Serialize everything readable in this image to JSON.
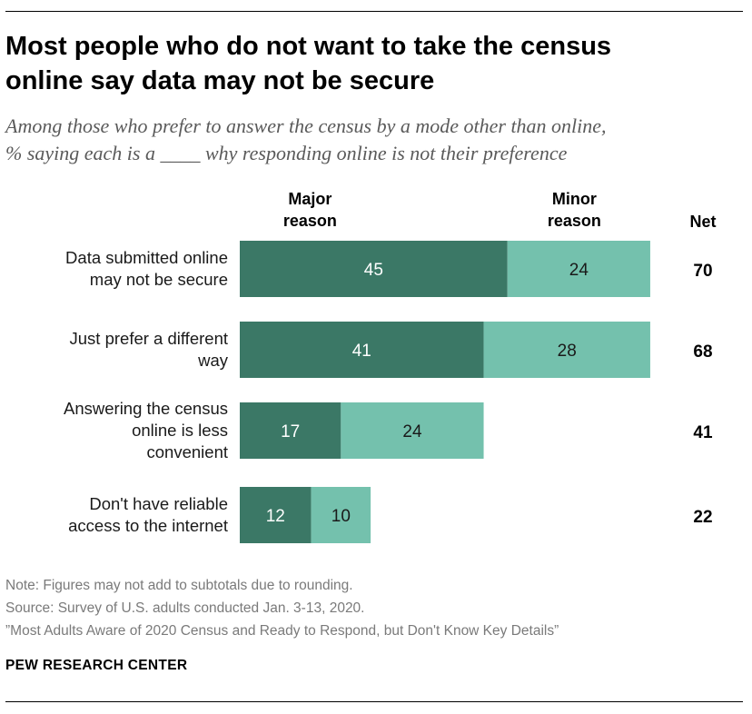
{
  "header": {
    "title_line1": "Most people who do not want to take the census",
    "title_line2": "online say data may not be secure",
    "subtitle_line1": "Among those who prefer to answer the census by a mode other than online,",
    "subtitle_line2": "% saying each is a ____ why responding online is not their preference"
  },
  "chart_data": {
    "type": "bar",
    "orientation": "horizontal",
    "stacked": true,
    "columns": {
      "major": [
        "Major",
        "reason"
      ],
      "minor": [
        "Minor",
        "reason"
      ],
      "net": "Net"
    },
    "categories": [
      [
        "Data submitted online",
        "may not be secure"
      ],
      [
        "Just prefer a different",
        "way"
      ],
      [
        "Answering the census",
        "online is less",
        "convenient"
      ],
      [
        "Don't have reliable",
        "access to the internet"
      ]
    ],
    "series": [
      {
        "name": "Major reason",
        "values": [
          45,
          41,
          17,
          12
        ],
        "color": "#3b7866",
        "label_color": "#ffffff"
      },
      {
        "name": "Minor reason",
        "values": [
          24,
          28,
          24,
          10
        ],
        "color": "#74c1ad",
        "label_color": "#1a1a1a"
      }
    ],
    "net": [
      70,
      68,
      41,
      22
    ],
    "grid": false,
    "legend": "top"
  },
  "footer": {
    "note": "Note: Figures may not add to subtotals due to rounding.",
    "source": "Source: Survey of U.S. adults conducted Jan. 3-13, 2020.",
    "report": "”Most Adults Aware of 2020 Census and Ready to Respond, but Don't Know Key Details”",
    "brand": "PEW RESEARCH CENTER"
  }
}
